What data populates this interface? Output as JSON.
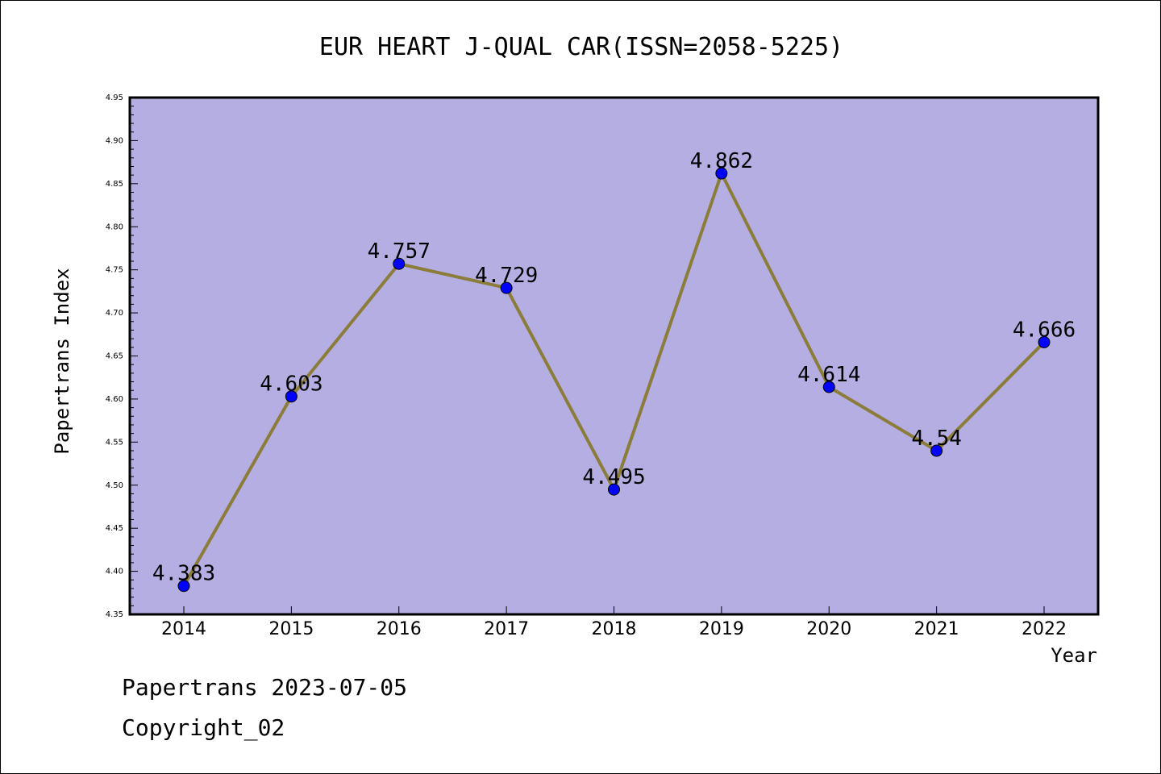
{
  "chart_data": {
    "type": "line",
    "title": "EUR HEART J-QUAL CAR(ISSN=2058-5225)",
    "xlabel": "Year",
    "ylabel": "Papertrans Index",
    "categories": [
      "2014",
      "2015",
      "2016",
      "2017",
      "2018",
      "2019",
      "2020",
      "2021",
      "2022"
    ],
    "series": [
      {
        "values": [
          4.383,
          4.603,
          4.757,
          4.729,
          4.495,
          4.862,
          4.614,
          4.54,
          4.666
        ],
        "labels": [
          "4.383",
          "4.603",
          "4.757",
          "4.729",
          "4.495",
          "4.862",
          "4.614",
          "4.54",
          "4.666"
        ]
      }
    ],
    "ylim": [
      4.35,
      4.95
    ],
    "yticks": [
      "4.35",
      "4.40",
      "4.45",
      "4.50",
      "4.55",
      "4.60",
      "4.65",
      "4.70",
      "4.75",
      "4.80",
      "4.85",
      "4.90",
      "4.95"
    ],
    "colors": {
      "plot_background": "#b4aee2",
      "line": "#8b7c3a",
      "marker": "#0000ff"
    },
    "grid": false,
    "legend": "none"
  },
  "footer": {
    "line1": "Papertrans 2023-07-05",
    "line2": "Copyright_02"
  }
}
